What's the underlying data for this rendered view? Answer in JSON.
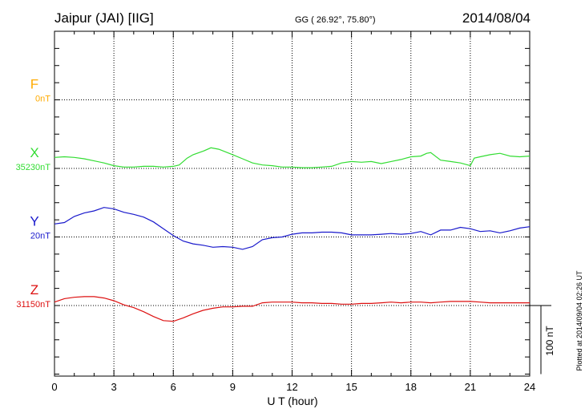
{
  "header": {
    "station": "Jaipur (JAI)  [IIG]",
    "coords": "GG ( 26.92°,  75.80°)",
    "date": "2014/08/04"
  },
  "side_note": "Plotted at 2014/09/04 02:26 UT",
  "chart_data": {
    "type": "line",
    "xlabel": "U T (hour)",
    "xlim": [
      0,
      24
    ],
    "xticks": [
      "0",
      "3",
      "6",
      "9",
      "12",
      "15",
      "18",
      "21",
      "24"
    ],
    "scale_bar_label": "100 nT",
    "scale_bar_nT": 100,
    "components": [
      {
        "letter": "F",
        "baseline": "0nT",
        "color": "#ffaa00",
        "lane": 1,
        "points": []
      },
      {
        "letter": "X",
        "baseline": "35230nT",
        "color": "#33dd33",
        "lane": 2,
        "points": [
          [
            0,
            16
          ],
          [
            0.5,
            17
          ],
          [
            1,
            16
          ],
          [
            1.5,
            14
          ],
          [
            2,
            11
          ],
          [
            2.5,
            8
          ],
          [
            3,
            4
          ],
          [
            3.5,
            2
          ],
          [
            4,
            2
          ],
          [
            4.5,
            3
          ],
          [
            5,
            3
          ],
          [
            5.5,
            2
          ],
          [
            6,
            3
          ],
          [
            6.3,
            5
          ],
          [
            6.7,
            15
          ],
          [
            7,
            20
          ],
          [
            7.5,
            25
          ],
          [
            7.9,
            30
          ],
          [
            8.3,
            28
          ],
          [
            9,
            20
          ],
          [
            9.5,
            14
          ],
          [
            10,
            8
          ],
          [
            10.5,
            5
          ],
          [
            11,
            4
          ],
          [
            11.5,
            2
          ],
          [
            12,
            2
          ],
          [
            12.5,
            1
          ],
          [
            13,
            1
          ],
          [
            13.5,
            2
          ],
          [
            14,
            3
          ],
          [
            14.5,
            8
          ],
          [
            15,
            10
          ],
          [
            15.5,
            9
          ],
          [
            16,
            10
          ],
          [
            16.5,
            7
          ],
          [
            17,
            10
          ],
          [
            17.5,
            13
          ],
          [
            18,
            17
          ],
          [
            18.5,
            18
          ],
          [
            18.8,
            22
          ],
          [
            19,
            23
          ],
          [
            19.5,
            12
          ],
          [
            20,
            10
          ],
          [
            20.5,
            8
          ],
          [
            21,
            4
          ],
          [
            21.2,
            15
          ],
          [
            21.5,
            17
          ],
          [
            22,
            20
          ],
          [
            22.5,
            22
          ],
          [
            23,
            18
          ],
          [
            23.5,
            17
          ],
          [
            24,
            18
          ]
        ]
      },
      {
        "letter": "Y",
        "baseline": "20nT",
        "color": "#1a1acc",
        "lane": 3,
        "points": [
          [
            0,
            19
          ],
          [
            0.5,
            21
          ],
          [
            1,
            30
          ],
          [
            1.5,
            35
          ],
          [
            2,
            38
          ],
          [
            2.5,
            43
          ],
          [
            3,
            41
          ],
          [
            3.5,
            36
          ],
          [
            4,
            33
          ],
          [
            4.5,
            29
          ],
          [
            5,
            22
          ],
          [
            5.5,
            12
          ],
          [
            6,
            2
          ],
          [
            6.5,
            -6
          ],
          [
            7,
            -10
          ],
          [
            7.5,
            -12
          ],
          [
            8,
            -15
          ],
          [
            8.5,
            -14
          ],
          [
            9,
            -15
          ],
          [
            9.5,
            -18
          ],
          [
            10,
            -14
          ],
          [
            10.5,
            -4
          ],
          [
            11,
            -1
          ],
          [
            11.5,
            0
          ],
          [
            12,
            4
          ],
          [
            12.5,
            6
          ],
          [
            13,
            6
          ],
          [
            13.5,
            7
          ],
          [
            14,
            7
          ],
          [
            14.5,
            6
          ],
          [
            15,
            3
          ],
          [
            15.5,
            3
          ],
          [
            16,
            3
          ],
          [
            16.5,
            4
          ],
          [
            17,
            5
          ],
          [
            17.5,
            4
          ],
          [
            18,
            5
          ],
          [
            18.5,
            8
          ],
          [
            19,
            3
          ],
          [
            19.5,
            10
          ],
          [
            20,
            10
          ],
          [
            20.5,
            14
          ],
          [
            21,
            12
          ],
          [
            21.5,
            8
          ],
          [
            22,
            9
          ],
          [
            22.5,
            6
          ],
          [
            23,
            9
          ],
          [
            23.5,
            13
          ],
          [
            24,
            15
          ]
        ]
      },
      {
        "letter": "Z",
        "baseline": "31150nT",
        "color": "#dd1111",
        "lane": 4,
        "points": [
          [
            0,
            5
          ],
          [
            0.5,
            10
          ],
          [
            1,
            12
          ],
          [
            1.5,
            13
          ],
          [
            2,
            13
          ],
          [
            2.5,
            11
          ],
          [
            3,
            7
          ],
          [
            3.5,
            1
          ],
          [
            4,
            -3
          ],
          [
            4.5,
            -9
          ],
          [
            5,
            -16
          ],
          [
            5.5,
            -22
          ],
          [
            6,
            -23
          ],
          [
            6.5,
            -18
          ],
          [
            7,
            -12
          ],
          [
            7.5,
            -7
          ],
          [
            8,
            -4
          ],
          [
            8.5,
            -2
          ],
          [
            9,
            -2
          ],
          [
            9.5,
            -1
          ],
          [
            10,
            -1
          ],
          [
            10.5,
            4
          ],
          [
            11,
            5
          ],
          [
            11.5,
            5
          ],
          [
            12,
            5
          ],
          [
            12.5,
            4
          ],
          [
            13,
            4
          ],
          [
            13.5,
            3
          ],
          [
            14,
            3
          ],
          [
            14.5,
            2
          ],
          [
            15,
            2
          ],
          [
            15.5,
            3
          ],
          [
            16,
            3
          ],
          [
            16.5,
            4
          ],
          [
            17,
            5
          ],
          [
            17.5,
            4
          ],
          [
            18,
            5
          ],
          [
            18.5,
            5
          ],
          [
            19,
            4
          ],
          [
            19.5,
            5
          ],
          [
            20,
            6
          ],
          [
            20.5,
            6
          ],
          [
            21,
            6
          ],
          [
            21.5,
            5
          ],
          [
            22,
            4
          ],
          [
            22.5,
            4
          ],
          [
            23,
            4
          ],
          [
            23.5,
            4
          ],
          [
            24,
            4
          ]
        ]
      }
    ]
  }
}
